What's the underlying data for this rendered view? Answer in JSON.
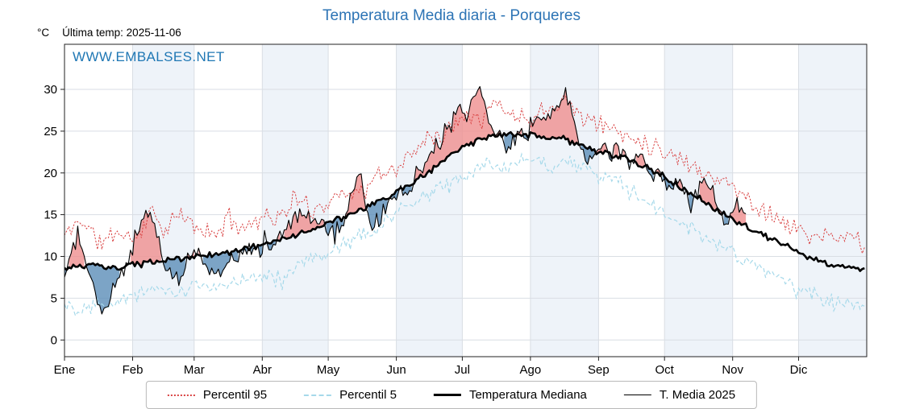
{
  "title": "Temperatura Media diaria - Porqueres",
  "unit_label": "°C",
  "last_temp_label": "Última temp: 2025-11-06",
  "watermark": "WWW.EMBALSES.NET",
  "colors": {
    "title": "#2d74b5",
    "watermark": "#1f77b4",
    "p95": "#d94343",
    "p5": "#a6d9ea",
    "median": "#000000",
    "t2025": "#000000",
    "fill_above": "#ef8f8f",
    "fill_below": "#5b8db8",
    "grid": "#d9dee4",
    "band": "#eef3f9",
    "spine": "#222222"
  },
  "chart_data": {
    "type": "line",
    "title": "Temperatura Media diaria - Porqueres",
    "xlabel": "",
    "ylabel": "°C",
    "x_tick_labels": [
      "Ene",
      "Feb",
      "Mar",
      "Abr",
      "May",
      "Jun",
      "Jul",
      "Ago",
      "Sep",
      "Oct",
      "Nov",
      "Dic"
    ],
    "month_start_days": [
      0,
      31,
      59,
      90,
      120,
      151,
      181,
      212,
      243,
      273,
      304,
      334
    ],
    "days_in_year": 365,
    "y_ticks": [
      0,
      5,
      10,
      15,
      20,
      25,
      30
    ],
    "ylim": [
      -2,
      35.4
    ],
    "grid": true,
    "legend_position": "bottom",
    "series": [
      {
        "name": "Percentil 95",
        "style": "dotted",
        "color": "#d94343",
        "jitter": 1.5,
        "seed": 11,
        "anchors": [
          [
            0,
            12.5
          ],
          [
            8,
            14.5
          ],
          [
            16,
            11.5
          ],
          [
            24,
            13
          ],
          [
            32,
            12
          ],
          [
            40,
            15.5
          ],
          [
            46,
            13
          ],
          [
            52,
            15
          ],
          [
            60,
            13.5
          ],
          [
            68,
            12.5
          ],
          [
            75,
            14.5
          ],
          [
            82,
            13.5
          ],
          [
            91,
            15
          ],
          [
            98,
            14.5
          ],
          [
            105,
            17
          ],
          [
            112,
            15.5
          ],
          [
            120,
            16.5
          ],
          [
            128,
            18
          ],
          [
            135,
            17.5
          ],
          [
            142,
            19.5
          ],
          [
            150,
            20.5
          ],
          [
            158,
            22
          ],
          [
            166,
            25
          ],
          [
            172,
            24
          ],
          [
            178,
            26.5
          ],
          [
            184,
            27.5
          ],
          [
            190,
            26.5
          ],
          [
            196,
            28.5
          ],
          [
            203,
            27
          ],
          [
            210,
            26.5
          ],
          [
            218,
            27.5
          ],
          [
            226,
            29
          ],
          [
            233,
            27.5
          ],
          [
            240,
            26
          ],
          [
            248,
            25.5
          ],
          [
            255,
            24.5
          ],
          [
            262,
            24
          ],
          [
            270,
            23
          ],
          [
            278,
            22
          ],
          [
            285,
            21
          ],
          [
            292,
            20
          ],
          [
            300,
            19
          ],
          [
            308,
            17.5
          ],
          [
            315,
            16
          ],
          [
            322,
            15
          ],
          [
            330,
            13.5
          ],
          [
            340,
            12.5
          ],
          [
            350,
            12
          ],
          [
            358,
            12.5
          ],
          [
            364,
            11.5
          ]
        ]
      },
      {
        "name": "Percentil 5",
        "style": "dashed",
        "color": "#a6d9ea",
        "jitter": 1.3,
        "seed": 22,
        "anchors": [
          [
            0,
            4.5
          ],
          [
            8,
            3.5
          ],
          [
            15,
            5
          ],
          [
            22,
            4.5
          ],
          [
            32,
            5.5
          ],
          [
            40,
            6.5
          ],
          [
            48,
            5.5
          ],
          [
            60,
            6.5
          ],
          [
            70,
            6
          ],
          [
            80,
            7.5
          ],
          [
            91,
            8
          ],
          [
            100,
            7
          ],
          [
            110,
            9.5
          ],
          [
            120,
            10.5
          ],
          [
            130,
            12
          ],
          [
            140,
            13
          ],
          [
            150,
            15
          ],
          [
            160,
            16.5
          ],
          [
            170,
            18
          ],
          [
            180,
            19.5
          ],
          [
            190,
            20.5
          ],
          [
            200,
            21
          ],
          [
            210,
            21.5
          ],
          [
            220,
            21
          ],
          [
            230,
            21.5
          ],
          [
            240,
            20
          ],
          [
            250,
            19
          ],
          [
            260,
            17.5
          ],
          [
            270,
            15.5
          ],
          [
            280,
            14
          ],
          [
            290,
            12.5
          ],
          [
            300,
            11
          ],
          [
            310,
            9.5
          ],
          [
            320,
            8
          ],
          [
            330,
            6.5
          ],
          [
            340,
            5.5
          ],
          [
            350,
            4.5
          ],
          [
            358,
            5
          ],
          [
            364,
            4
          ]
        ]
      },
      {
        "name": "Temperatura Mediana",
        "style": "thick",
        "color": "#000000",
        "jitter": 0.45,
        "seed": 33,
        "anchors": [
          [
            0,
            8.5
          ],
          [
            12,
            9
          ],
          [
            22,
            8.5
          ],
          [
            32,
            9
          ],
          [
            46,
            9.5
          ],
          [
            60,
            10
          ],
          [
            75,
            10.5
          ],
          [
            91,
            11.5
          ],
          [
            105,
            12.5
          ],
          [
            120,
            14
          ],
          [
            135,
            15.5
          ],
          [
            150,
            17.5
          ],
          [
            165,
            20
          ],
          [
            180,
            23
          ],
          [
            196,
            24.5
          ],
          [
            212,
            24.5
          ],
          [
            228,
            24
          ],
          [
            243,
            22.5
          ],
          [
            258,
            21.5
          ],
          [
            273,
            19.5
          ],
          [
            288,
            17
          ],
          [
            304,
            14.5
          ],
          [
            318,
            12.5
          ],
          [
            334,
            10.5
          ],
          [
            348,
            9
          ],
          [
            364,
            8.5
          ]
        ]
      },
      {
        "name": "T. Media 2025",
        "style": "thin",
        "color": "#000000",
        "jitter": 1.4,
        "seed": 44,
        "end_day": 310,
        "anchors": [
          [
            0,
            7.5
          ],
          [
            3,
            10.5
          ],
          [
            6,
            12.5
          ],
          [
            9,
            10
          ],
          [
            12,
            7
          ],
          [
            15,
            5
          ],
          [
            18,
            3.5
          ],
          [
            21,
            5
          ],
          [
            24,
            7
          ],
          [
            27,
            8.5
          ],
          [
            30,
            10.5
          ],
          [
            33,
            12.5
          ],
          [
            36,
            14.5
          ],
          [
            39,
            15.5
          ],
          [
            42,
            13
          ],
          [
            45,
            9
          ],
          [
            48,
            8
          ],
          [
            52,
            7.5
          ],
          [
            56,
            9.5
          ],
          [
            60,
            10.5
          ],
          [
            64,
            9
          ],
          [
            68,
            8
          ],
          [
            72,
            8
          ],
          [
            76,
            9.5
          ],
          [
            80,
            10
          ],
          [
            84,
            11.5
          ],
          [
            88,
            10.5
          ],
          [
            91,
            12
          ],
          [
            95,
            11
          ],
          [
            99,
            12.5
          ],
          [
            103,
            14
          ],
          [
            107,
            15.5
          ],
          [
            111,
            15
          ],
          [
            115,
            14
          ],
          [
            119,
            13.5
          ],
          [
            123,
            12.5
          ],
          [
            127,
            14
          ],
          [
            131,
            17
          ],
          [
            134,
            20.5
          ],
          [
            137,
            16
          ],
          [
            140,
            13
          ],
          [
            144,
            15
          ],
          [
            148,
            16.5
          ],
          [
            152,
            18
          ],
          [
            156,
            17
          ],
          [
            160,
            19.5
          ],
          [
            164,
            21
          ],
          [
            168,
            22.5
          ],
          [
            172,
            24.5
          ],
          [
            176,
            26
          ],
          [
            180,
            28
          ],
          [
            183,
            26.5
          ],
          [
            186,
            29
          ],
          [
            189,
            30
          ],
          [
            192,
            27
          ],
          [
            195,
            25
          ],
          [
            198,
            24.5
          ],
          [
            201,
            23
          ],
          [
            204,
            24
          ],
          [
            207,
            25.5
          ],
          [
            210,
            24
          ],
          [
            213,
            26
          ],
          [
            216,
            27
          ],
          [
            219,
            25.5
          ],
          [
            222,
            27.5
          ],
          [
            225,
            28.5
          ],
          [
            228,
            30
          ],
          [
            231,
            27
          ],
          [
            234,
            24
          ],
          [
            237,
            22
          ],
          [
            240,
            21.5
          ],
          [
            243,
            23
          ],
          [
            246,
            23.5
          ],
          [
            249,
            22.5
          ],
          [
            252,
            23
          ],
          [
            255,
            22
          ],
          [
            258,
            21
          ],
          [
            261,
            22.5
          ],
          [
            264,
            21
          ],
          [
            267,
            19.5
          ],
          [
            270,
            20.5
          ],
          [
            273,
            19
          ],
          [
            276,
            18
          ],
          [
            279,
            19.5
          ],
          [
            282,
            18
          ],
          [
            285,
            16.5
          ],
          [
            288,
            17.5
          ],
          [
            291,
            19
          ],
          [
            294,
            18
          ],
          [
            297,
            16
          ],
          [
            300,
            14.5
          ],
          [
            303,
            15.5
          ],
          [
            306,
            17
          ],
          [
            310,
            15
          ]
        ]
      }
    ],
    "fill_between": {
      "upper": "T. Media 2025",
      "lower": "Temperatura Mediana",
      "above_color": "#ef8f8f",
      "below_color": "#5b8db8",
      "opacity": 0.8
    }
  }
}
